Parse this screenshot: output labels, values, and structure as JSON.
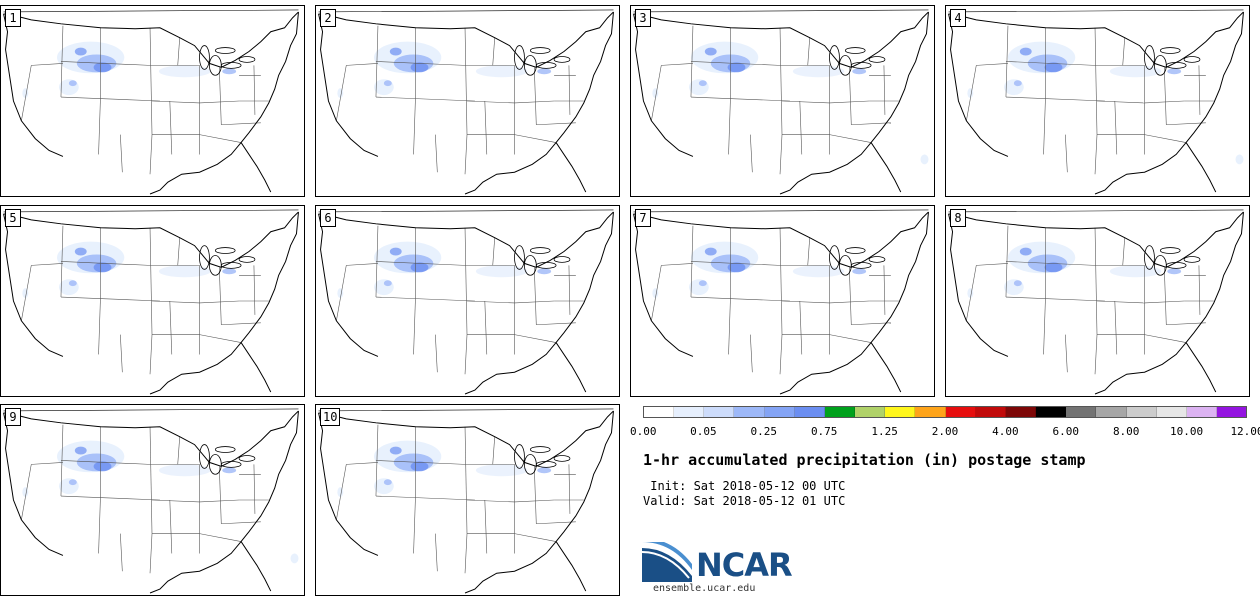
{
  "panels": [
    {
      "label": "1"
    },
    {
      "label": "2"
    },
    {
      "label": "3"
    },
    {
      "label": "4"
    },
    {
      "label": "5"
    },
    {
      "label": "6"
    },
    {
      "label": "7"
    },
    {
      "label": "8"
    },
    {
      "label": "9"
    },
    {
      "label": "10"
    }
  ],
  "colorbar": {
    "colors": [
      "#ffffff",
      "#e6effd",
      "#cddcfb",
      "#9db8f8",
      "#84a4f5",
      "#6b8ef1",
      "#00a11c",
      "#b0d269",
      "#fff61c",
      "#fea41a",
      "#e60e0e",
      "#c10a0a",
      "#7d0707",
      "#000000",
      "#737373",
      "#a6a6a6",
      "#cccccc",
      "#e6e6e6",
      "#dcb3f2",
      "#9414e0"
    ],
    "labels": [
      "0.00",
      "0.05",
      "0.25",
      "0.75",
      "1.25",
      "2.00",
      "4.00",
      "6.00",
      "8.00",
      "10.00",
      "12.00"
    ]
  },
  "title": "1-hr accumulated precipitation (in) postage stamp",
  "init_line": " Init: Sat 2018-05-12 00 UTC",
  "valid_line": "Valid: Sat 2018-05-12 01 UTC",
  "logo": {
    "text": "NCAR",
    "url": "ensemble.ucar.edu",
    "blue": "#1a4f86",
    "light_blue": "#4a8fd0"
  },
  "precip_colors": {
    "light": "#e6effd",
    "medium": "#9db8f8",
    "dark": "#6b8ef1"
  }
}
